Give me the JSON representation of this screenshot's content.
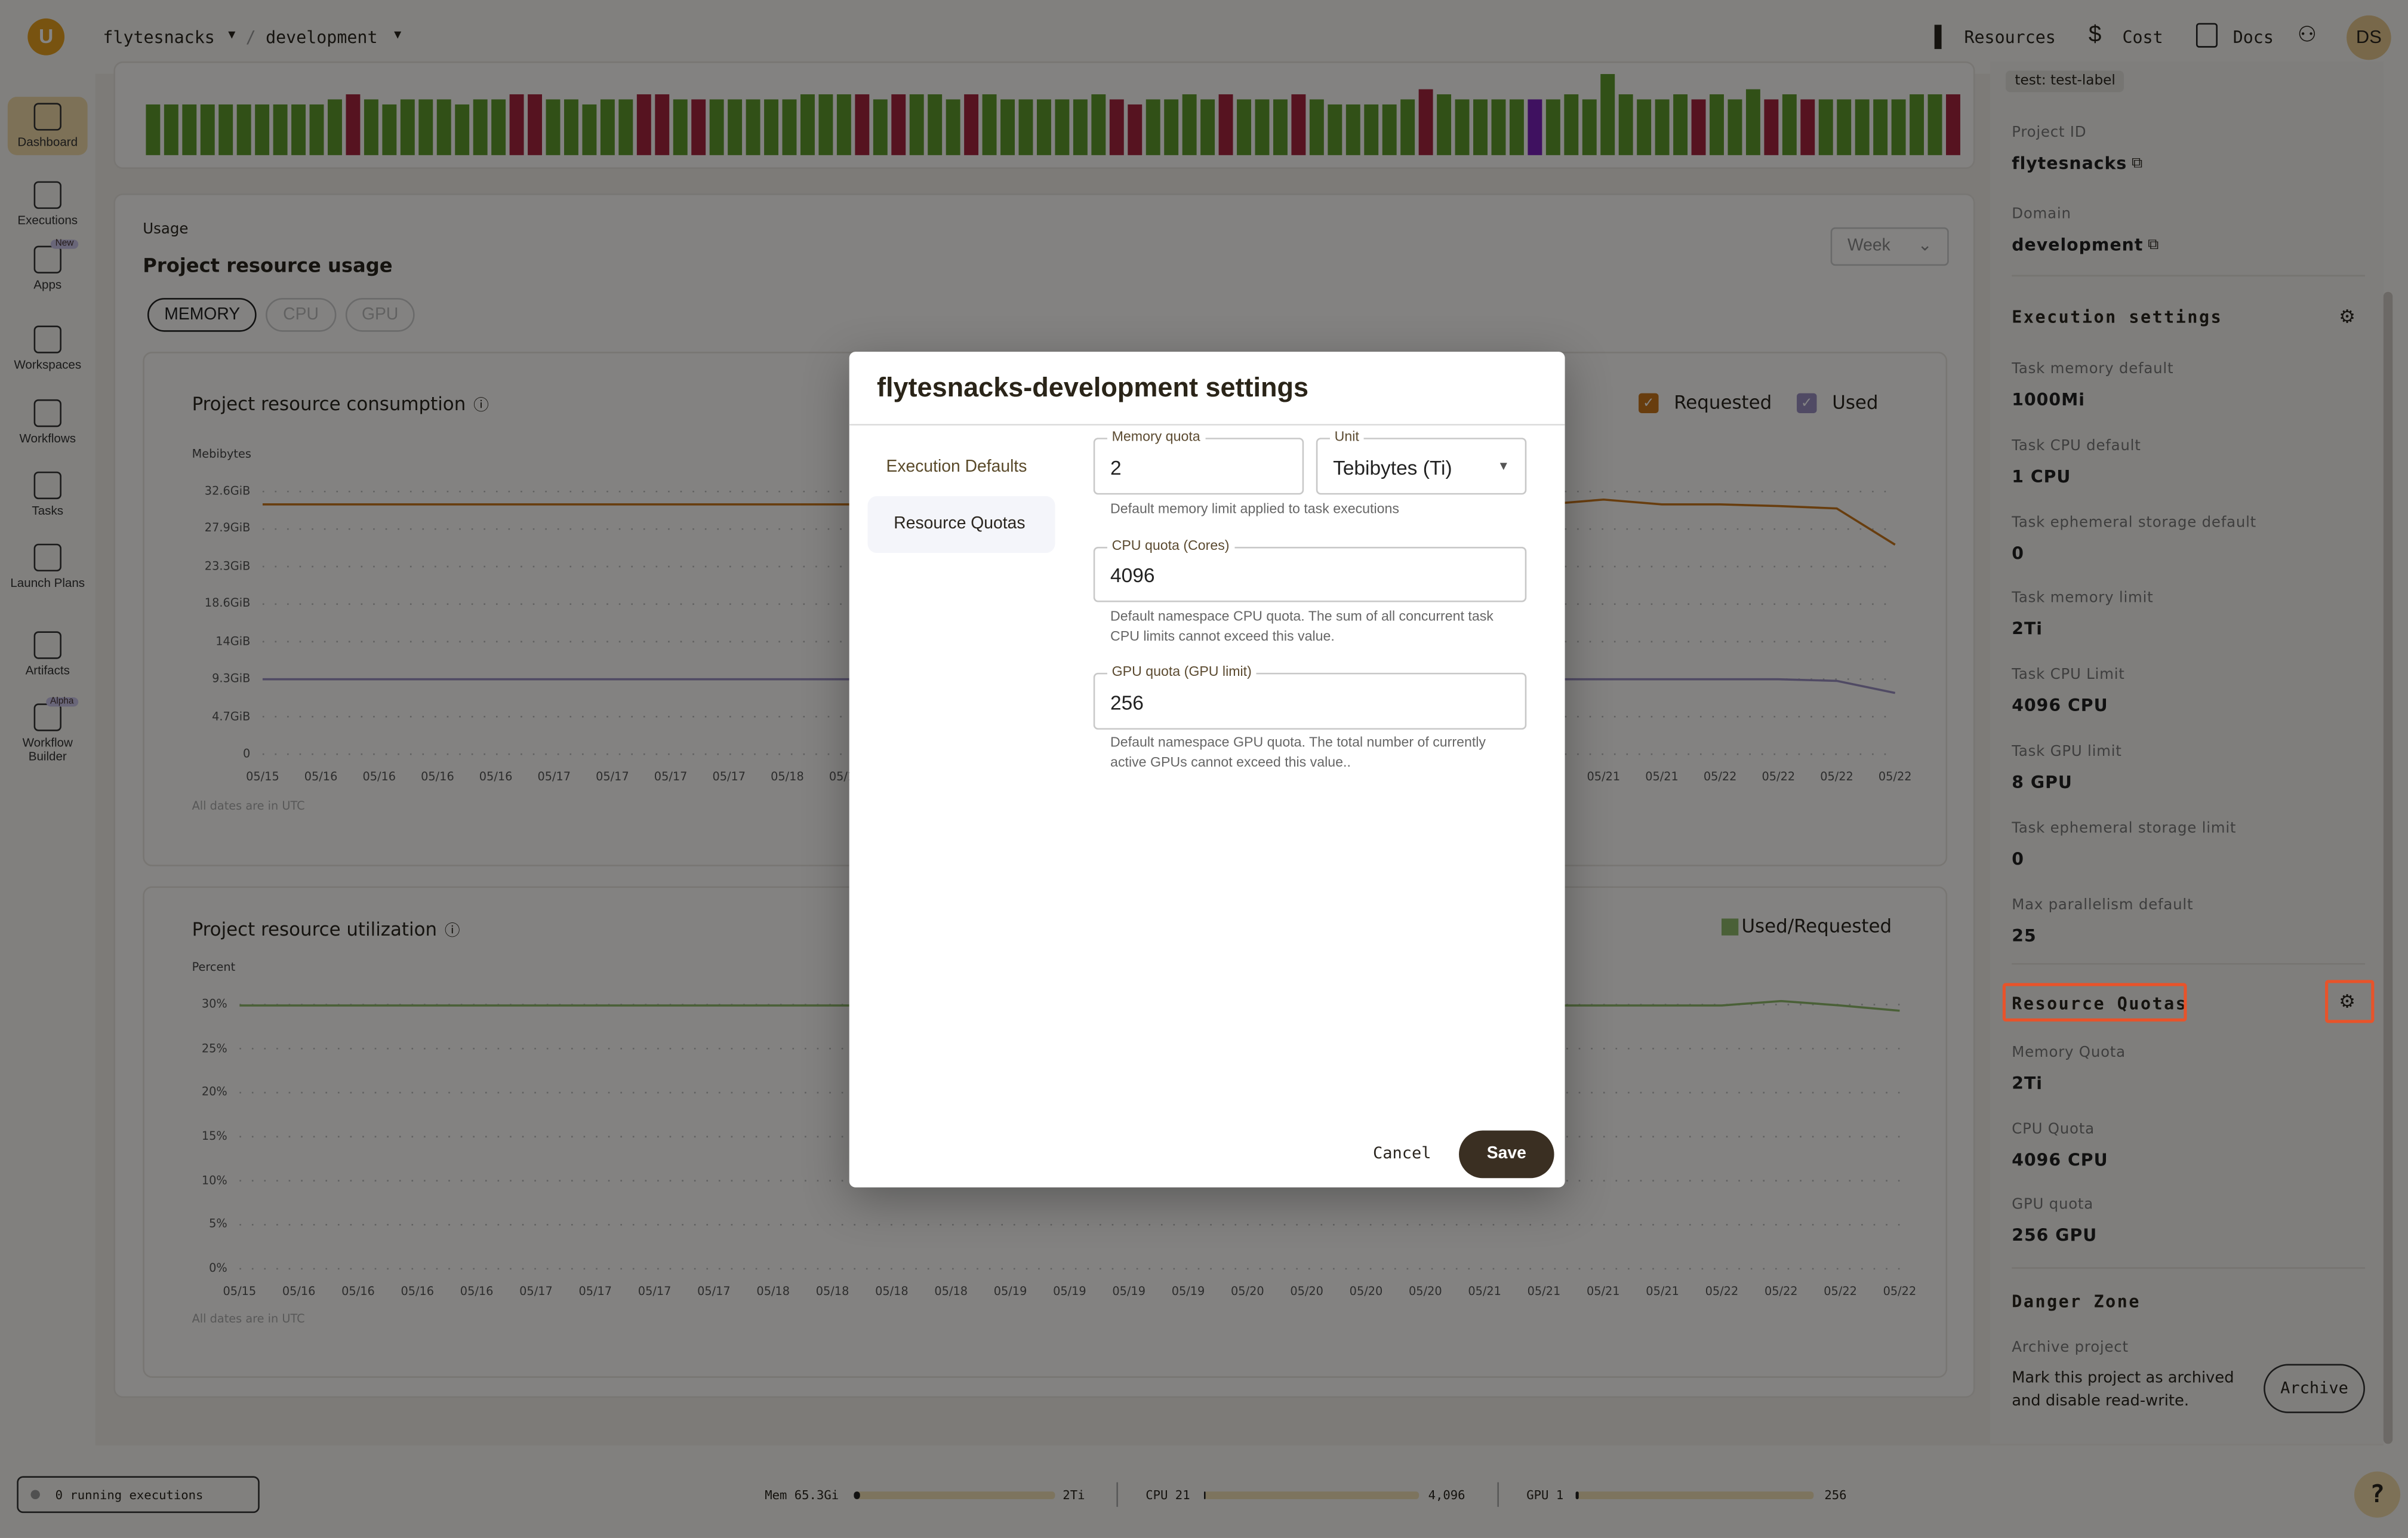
{
  "topbar": {
    "project": "flytesnacks",
    "separator": "/",
    "domain": "development",
    "resources": "Resources",
    "cost": "Cost",
    "docs": "Docs",
    "avatar": "DS"
  },
  "sidebar": {
    "items": [
      {
        "label": "Dashboard",
        "active": true
      },
      {
        "label": "Executions"
      },
      {
        "label": "Apps",
        "badge": "New"
      },
      {
        "label": "Workspaces"
      },
      {
        "label": "Workflows"
      },
      {
        "label": "Tasks"
      },
      {
        "label": "Launch Plans"
      },
      {
        "label": "Artifacts"
      },
      {
        "label": "Workflow Builder",
        "badge": "Alpha"
      }
    ]
  },
  "colors": {
    "succeeded": "#5e9a2c",
    "failed": "#a5253f",
    "other": "#7a22b8",
    "requested": "#c7761c",
    "used": "#9a8fc0",
    "util": "#8fb86a",
    "accent": "#e8532a"
  },
  "executions_chart": {
    "statuses": [
      "s",
      "s",
      "s",
      "s",
      "s",
      "s",
      "s",
      "s",
      "s",
      "s",
      "s",
      "f",
      "s",
      "s",
      "s",
      "s",
      "s",
      "s",
      "s",
      "s",
      "f",
      "f",
      "s",
      "s",
      "s",
      "s",
      "s",
      "f",
      "f",
      "s",
      "f",
      "s",
      "s",
      "s",
      "s",
      "s",
      "s",
      "s",
      "s",
      "f",
      "s",
      "f",
      "s",
      "s",
      "s",
      "f",
      "s",
      "s",
      "s",
      "s",
      "s",
      "s",
      "s",
      "f",
      "f",
      "s",
      "s",
      "s",
      "s",
      "f",
      "s",
      "s",
      "s",
      "f",
      "s",
      "s",
      "s",
      "s",
      "s",
      "s",
      "f",
      "s",
      "s",
      "s",
      "s",
      "s",
      "o",
      "s",
      "s",
      "s",
      "s",
      "s",
      "s",
      "s",
      "s",
      "f",
      "s",
      "s",
      "s",
      "f",
      "s",
      "f",
      "s",
      "s",
      "s",
      "s",
      "s",
      "s",
      "s",
      "f"
    ],
    "counts": [
      10,
      10,
      10,
      10,
      10,
      10,
      10,
      10,
      10,
      10,
      11,
      12,
      11,
      10,
      11,
      11,
      11,
      10,
      11,
      11,
      12,
      12,
      11,
      11,
      10,
      11,
      11,
      12,
      12,
      11,
      11,
      11,
      11,
      11,
      11,
      11,
      12,
      12,
      12,
      12,
      11,
      12,
      12,
      12,
      11,
      12,
      12,
      11,
      11,
      11,
      11,
      11,
      12,
      11,
      10,
      11,
      11,
      12,
      11,
      12,
      11,
      11,
      11,
      12,
      11,
      10,
      10,
      10,
      10,
      11,
      13,
      12,
      11,
      11,
      11,
      11,
      11,
      11,
      12,
      11,
      16,
      12,
      11,
      11,
      12,
      11,
      12,
      11,
      13,
      11,
      12,
      11,
      11,
      11,
      11,
      11,
      11,
      12,
      12,
      12
    ]
  },
  "usage": {
    "eyebrow": "Usage",
    "title": "Project resource usage",
    "range": "Week",
    "tabs": [
      "MEMORY",
      "CPU",
      "GPU"
    ]
  },
  "chart_data": [
    {
      "type": "line",
      "title": "Project resource consumption",
      "ylabel": "Mebibytes",
      "yticks": [
        "32.6GiB",
        "27.9GiB",
        "23.3GiB",
        "18.6GiB",
        "14GiB",
        "9.3GiB",
        "4.7GiB",
        "0"
      ],
      "ylim": [
        0,
        32.6
      ],
      "x": [
        "05/15",
        "05/16",
        "05/16",
        "05/16",
        "05/16",
        "05/17",
        "05/17",
        "05/17",
        "05/17",
        "05/18",
        "05/18",
        "05/18",
        "05/18",
        "05/19",
        "05/19",
        "05/19",
        "05/19",
        "05/20",
        "05/20",
        "05/20",
        "05/20",
        "05/21",
        "05/21",
        "05/21",
        "05/21",
        "05/22",
        "05/22",
        "05/22",
        "05/22"
      ],
      "series": [
        {
          "name": "Requested",
          "values": [
            31,
            31,
            31,
            31,
            31,
            31,
            31,
            31,
            31,
            31,
            31,
            31,
            31,
            31,
            31,
            31,
            31,
            31,
            31,
            31,
            31,
            31.4,
            31,
            31.6,
            31,
            31,
            30.8,
            30.5,
            26
          ]
        },
        {
          "name": "Used",
          "values": [
            9.3,
            9.3,
            9.3,
            9.3,
            9.3,
            9.3,
            9.3,
            9.3,
            9.3,
            9.3,
            9.3,
            9.3,
            9.3,
            9.3,
            9.3,
            9.3,
            9.3,
            9.3,
            9.3,
            9.3,
            9.3,
            9.3,
            9.3,
            9.3,
            9.3,
            9.3,
            9.3,
            9.1,
            7.6
          ]
        }
      ],
      "footnote": "All dates are in UTC",
      "grid": true,
      "legend": "top-right"
    },
    {
      "type": "line",
      "title": "Project resource utilization",
      "ylabel": "Percent",
      "yticks": [
        "30%",
        "25%",
        "20%",
        "15%",
        "10%",
        "5%",
        "0%"
      ],
      "ylim": [
        0,
        30
      ],
      "x": [
        "05/15",
        "05/16",
        "05/16",
        "05/16",
        "05/16",
        "05/17",
        "05/17",
        "05/17",
        "05/17",
        "05/18",
        "05/18",
        "05/18",
        "05/18",
        "05/19",
        "05/19",
        "05/19",
        "05/19",
        "05/20",
        "05/20",
        "05/20",
        "05/20",
        "05/21",
        "05/21",
        "05/21",
        "05/21",
        "05/22",
        "05/22",
        "05/22",
        "05/22"
      ],
      "series": [
        {
          "name": "Used/Requested",
          "values": [
            29.9,
            29.9,
            29.9,
            29.9,
            29.9,
            29.9,
            29.9,
            29.9,
            29.9,
            29.9,
            29.9,
            29.9,
            29.9,
            29.9,
            29.9,
            29.9,
            29.9,
            29.9,
            29.9,
            29.9,
            29.9,
            29.9,
            29.9,
            29.9,
            29.9,
            29.9,
            30.4,
            29.9,
            29.3
          ]
        }
      ],
      "footnote": "All dates are in UTC",
      "grid": true,
      "legend": "top-right"
    }
  ],
  "right_panel": {
    "label_tag": "test: test-label",
    "project_id_label": "Project ID",
    "project_id": "flytesnacks",
    "domain_label": "Domain",
    "domain": "development",
    "exec_title": "Execution settings",
    "exec": [
      {
        "label": "Task memory default",
        "value": "1000Mi"
      },
      {
        "label": "Task CPU default",
        "value": "1 CPU"
      },
      {
        "label": "Task ephemeral storage default",
        "value": "0"
      },
      {
        "label": "Task memory limit",
        "value": "2Ti"
      },
      {
        "label": "Task CPU Limit",
        "value": "4096 CPU"
      },
      {
        "label": "Task GPU limit",
        "value": "8 GPU"
      },
      {
        "label": "Task ephemeral storage limit",
        "value": "0"
      },
      {
        "label": "Max parallelism default",
        "value": "25"
      }
    ],
    "quota_title": "Resource Quotas",
    "quotas": [
      {
        "label": "Memory Quota",
        "value": "2Ti"
      },
      {
        "label": "CPU Quota",
        "value": "4096 CPU"
      },
      {
        "label": "GPU quota",
        "value": "256 GPU"
      }
    ],
    "danger_title": "Danger Zone",
    "archive_label": "Archive project",
    "archive_desc": "Mark this project as archived and disable read-write.",
    "archive_btn": "Archive"
  },
  "bottombar": {
    "running": "0 running executions",
    "mem_label": "Mem 65.3Gi",
    "mem_max": "2Ti",
    "mem_fill": 0.03,
    "cpu_label": "CPU 21",
    "cpu_max": "4,096",
    "cpu_fill": 0.005,
    "gpu_label": "GPU 1",
    "gpu_max": "256",
    "gpu_fill": 0.004,
    "help": "?"
  },
  "modal": {
    "title": "flytesnacks-development settings",
    "nav": [
      "Execution Defaults",
      "Resource Quotas"
    ],
    "memory_label": "Memory quota",
    "memory_value": "2",
    "unit_label": "Unit",
    "unit_value": "Tebibytes (Ti)",
    "memory_help": "Default memory limit applied to task executions",
    "cpu_label": "CPU quota (Cores)",
    "cpu_value": "4096",
    "cpu_help": "Default namespace CPU quota. The sum of all concurrent task CPU limits cannot exceed this value.",
    "gpu_label": "GPU quota (GPU limit)",
    "gpu_value": "256",
    "gpu_help": "Default namespace GPU quota. The total number of currently active GPUs cannot exceed this value..",
    "cancel": "Cancel",
    "save": "Save"
  }
}
